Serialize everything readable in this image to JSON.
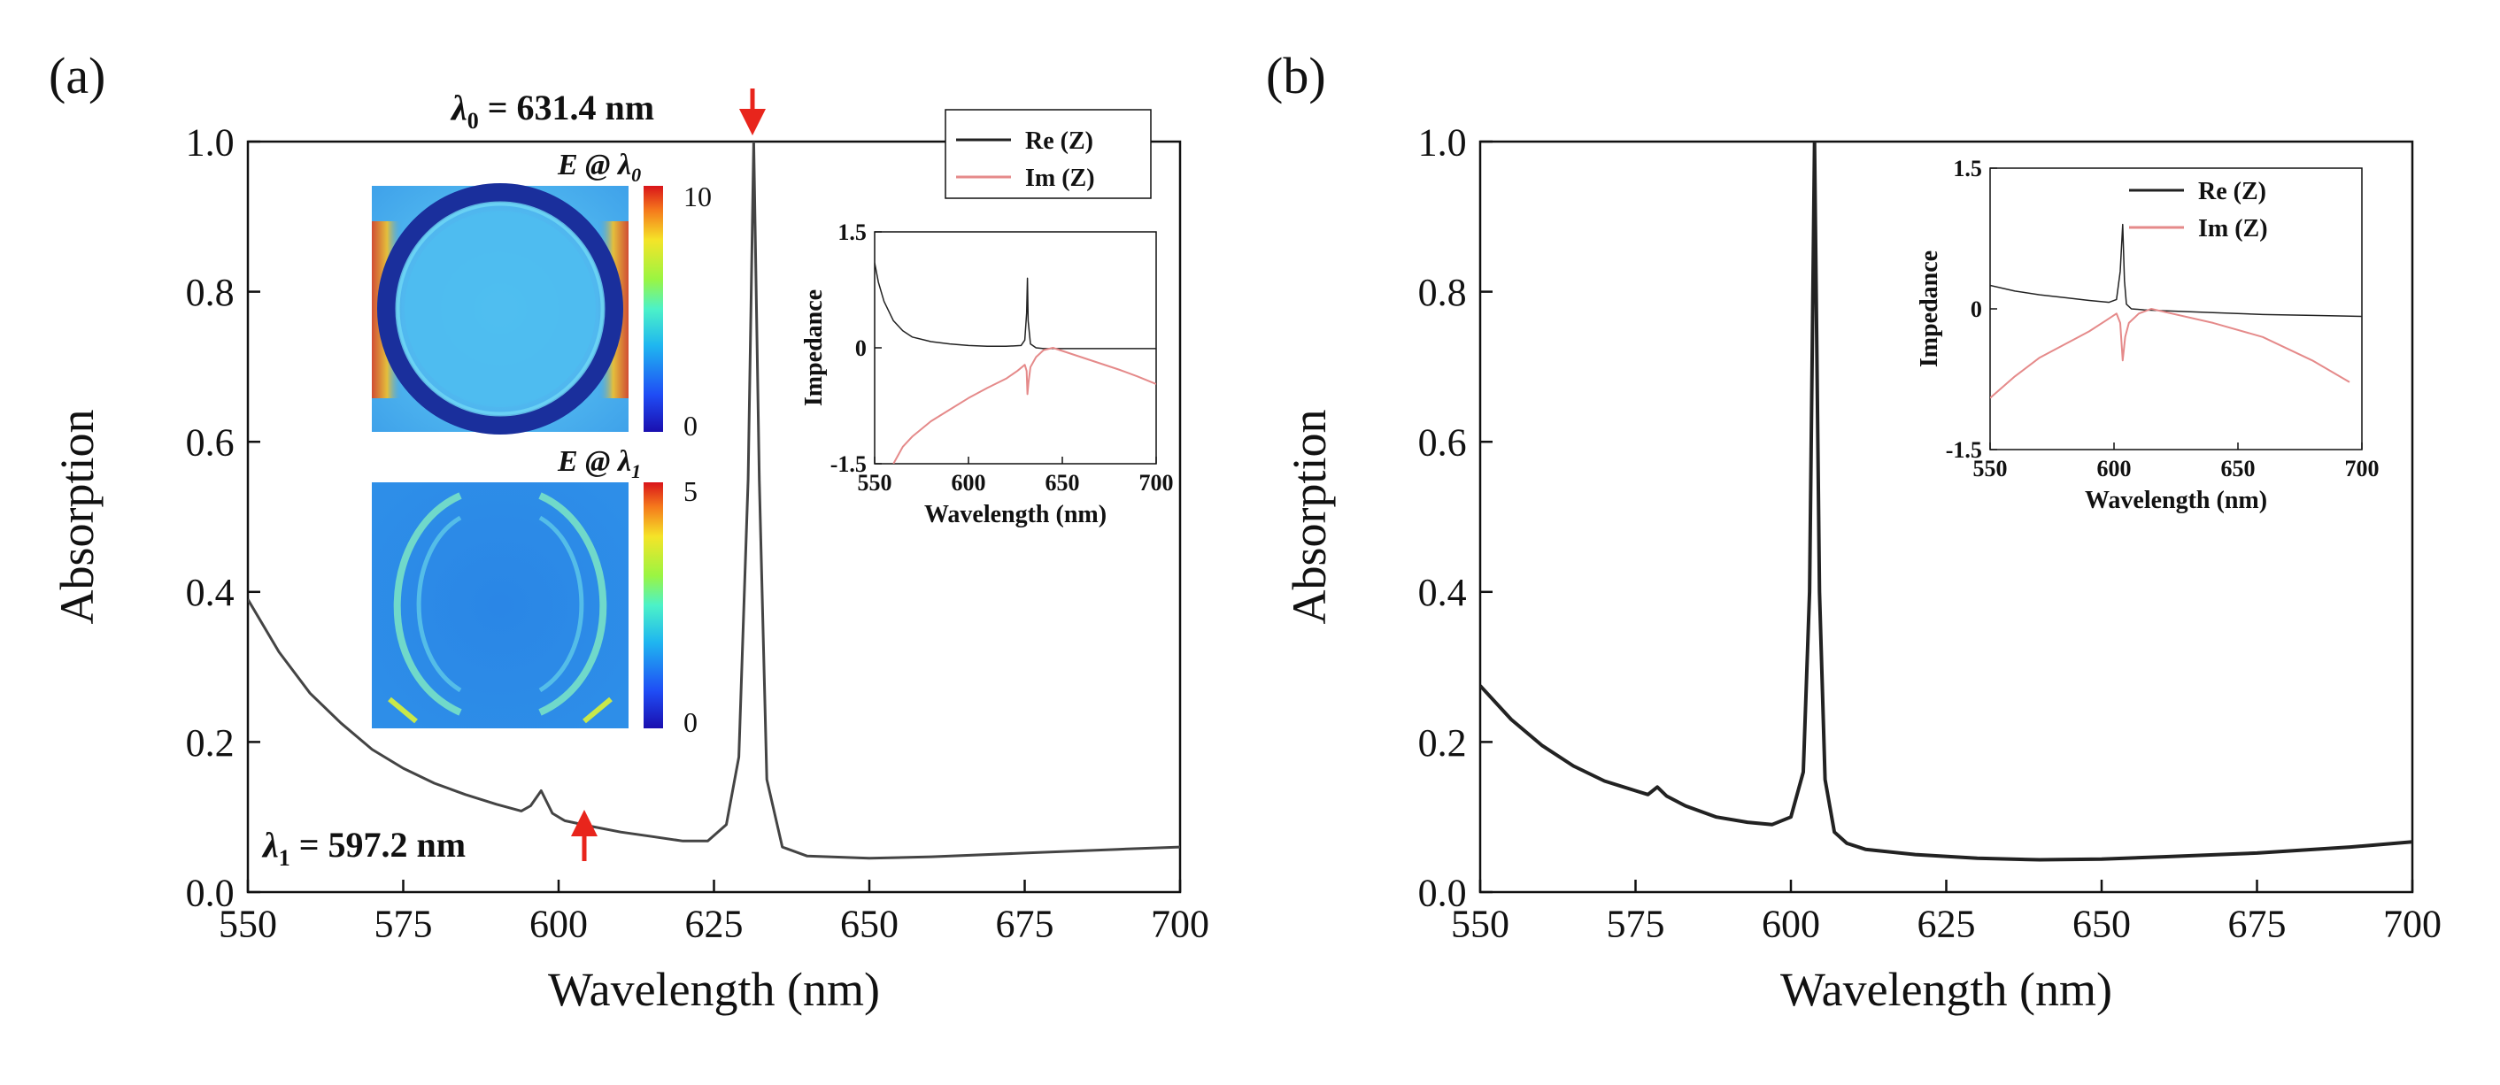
{
  "figure": {
    "panel_a_label": "(a)",
    "panel_b_label": "(b)"
  },
  "colors": {
    "main_curve": "#444444",
    "re_z": "#222222",
    "im_z": "#e58a8a",
    "arrow": "#e8251c",
    "axis": "#111111"
  },
  "annotations": {
    "lambda0_prefix": "λ",
    "lambda0_sub": "0",
    "lambda0_value": " = 631.4 nm",
    "lambda1_prefix": "λ",
    "lambda1_sub": "1",
    "lambda1_value": " = 597.2 nm",
    "arrow_down_icon": "red-arrow-down",
    "arrow_up_icon": "red-arrow-up"
  },
  "field_maps": {
    "top_title": "E @ λ",
    "top_sub": "0",
    "top_max": "10",
    "top_min": "0",
    "bottom_title": "E @ λ",
    "bottom_sub": "1",
    "bottom_max": "5",
    "bottom_min": "0"
  },
  "chart_data": [
    {
      "id": "a-main",
      "type": "line",
      "title": "",
      "xlabel": "Wavelength (nm)",
      "ylabel": "Absorption",
      "xlim": [
        550,
        700
      ],
      "ylim": [
        0.0,
        1.0
      ],
      "xticks": [
        550,
        575,
        600,
        625,
        650,
        675,
        700
      ],
      "yticks": [
        "0.0",
        "0.2",
        "0.4",
        "0.6",
        "0.8",
        "1.0"
      ],
      "series": [
        {
          "name": "Absorption",
          "x": [
            550,
            555,
            560,
            565,
            570,
            575,
            580,
            585,
            590,
            594,
            595.5,
            597.2,
            599,
            601,
            605,
            610,
            615,
            620,
            624,
            627,
            629,
            630.5,
            631.4,
            632.3,
            633.5,
            636,
            640,
            650,
            660,
            675,
            690,
            700
          ],
          "y": [
            0.39,
            0.32,
            0.265,
            0.225,
            0.19,
            0.165,
            0.145,
            0.13,
            0.117,
            0.108,
            0.115,
            0.135,
            0.105,
            0.095,
            0.088,
            0.08,
            0.074,
            0.068,
            0.068,
            0.09,
            0.18,
            0.55,
            1.0,
            0.55,
            0.15,
            0.06,
            0.048,
            0.045,
            0.047,
            0.052,
            0.057,
            0.06
          ]
        }
      ]
    },
    {
      "id": "a-inset",
      "type": "line",
      "xlabel": "Wavelength (nm)",
      "ylabel": "Impedance",
      "xlim": [
        550,
        700
      ],
      "ylim": [
        -1.5,
        1.5
      ],
      "xticks": [
        550,
        600,
        650,
        700
      ],
      "yticks": [
        "-1.5",
        "0",
        "1.5"
      ],
      "legend": "top-right",
      "series": [
        {
          "name": "Re (Z)",
          "x": [
            550,
            552,
            555,
            560,
            565,
            570,
            580,
            590,
            600,
            610,
            620,
            628,
            630,
            631,
            631.4,
            631.8,
            633,
            636,
            640,
            650,
            660,
            675,
            690,
            700
          ],
          "y": [
            1.1,
            0.85,
            0.6,
            0.35,
            0.22,
            0.14,
            0.08,
            0.05,
            0.03,
            0.02,
            0.02,
            0.03,
            0.1,
            0.45,
            0.9,
            0.35,
            0.05,
            0.0,
            -0.01,
            -0.01,
            -0.01,
            -0.01,
            -0.01,
            -0.01
          ]
        },
        {
          "name": "Im (Z)",
          "x": [
            560,
            565,
            570,
            580,
            590,
            600,
            610,
            620,
            626,
            630,
            631,
            631.4,
            632,
            633,
            636,
            640,
            645,
            650,
            660,
            670,
            680,
            690,
            700
          ],
          "y": [
            -1.5,
            -1.28,
            -1.15,
            -0.95,
            -0.8,
            -0.65,
            -0.52,
            -0.4,
            -0.3,
            -0.22,
            -0.3,
            -0.6,
            -0.45,
            -0.25,
            -0.12,
            -0.03,
            0.0,
            -0.04,
            -0.12,
            -0.2,
            -0.28,
            -0.37,
            -0.47
          ]
        }
      ]
    },
    {
      "id": "b-main",
      "type": "line",
      "title": "",
      "xlabel": "Wavelength (nm)",
      "ylabel": "Absorption",
      "xlim": [
        550,
        700
      ],
      "ylim": [
        0.0,
        1.0
      ],
      "xticks": [
        550,
        575,
        600,
        625,
        650,
        675,
        700
      ],
      "yticks": [
        "0.0",
        "0.2",
        "0.4",
        "0.6",
        "0.8",
        "1.0"
      ],
      "series": [
        {
          "name": "Absorption",
          "x": [
            550,
            555,
            560,
            565,
            570,
            575,
            577,
            578.5,
            580,
            583,
            588,
            593,
            597,
            600,
            602,
            603,
            603.8,
            604.6,
            605.5,
            607,
            609,
            612,
            620,
            630,
            640,
            650,
            660,
            675,
            690,
            700
          ],
          "y": [
            0.275,
            0.23,
            0.195,
            0.168,
            0.148,
            0.135,
            0.13,
            0.14,
            0.128,
            0.115,
            0.1,
            0.093,
            0.09,
            0.1,
            0.16,
            0.4,
            1.0,
            0.4,
            0.15,
            0.08,
            0.065,
            0.057,
            0.05,
            0.045,
            0.043,
            0.044,
            0.047,
            0.052,
            0.06,
            0.067
          ]
        }
      ]
    },
    {
      "id": "b-inset",
      "type": "line",
      "xlabel": "Wavelength (nm)",
      "ylabel": "Impedance",
      "xlim": [
        550,
        700
      ],
      "ylim": [
        -1.5,
        1.5
      ],
      "xticks": [
        550,
        600,
        650,
        700
      ],
      "yticks": [
        "-1.5",
        "0",
        "1.5"
      ],
      "legend": "top-right",
      "series": [
        {
          "name": "Re (Z)",
          "x": [
            550,
            560,
            570,
            580,
            590,
            598,
            601,
            602.5,
            603.5,
            604.2,
            605,
            607,
            612,
            620,
            640,
            660,
            680,
            700
          ],
          "y": [
            0.25,
            0.19,
            0.15,
            0.12,
            0.09,
            0.07,
            0.1,
            0.4,
            0.9,
            0.3,
            0.05,
            0.0,
            -0.01,
            -0.02,
            -0.04,
            -0.06,
            -0.07,
            -0.08
          ]
        },
        {
          "name": "Im (Z)",
          "x": [
            550,
            560,
            570,
            580,
            590,
            597,
            601,
            602.5,
            603.5,
            604.5,
            606,
            610,
            615,
            620,
            640,
            660,
            680,
            695
          ],
          "y": [
            -0.95,
            -0.72,
            -0.52,
            -0.38,
            -0.24,
            -0.12,
            -0.05,
            -0.15,
            -0.55,
            -0.3,
            -0.15,
            -0.05,
            0.0,
            -0.03,
            -0.15,
            -0.3,
            -0.55,
            -0.78
          ]
        }
      ]
    }
  ]
}
